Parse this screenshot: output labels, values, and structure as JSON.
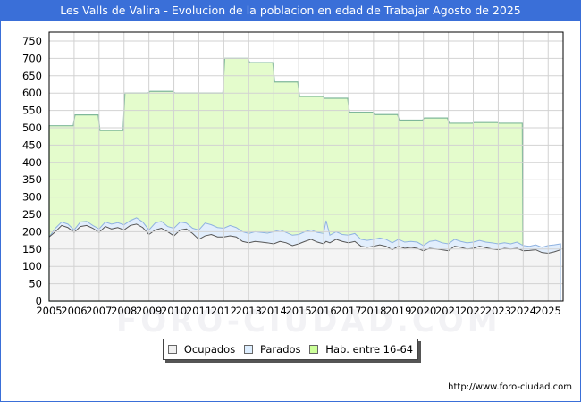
{
  "title": "Les Valls de Valira - Evolucion de la poblacion en edad de Trabajar Agosto de 2025",
  "credit": "http://www.foro-ciudad.com",
  "watermark": "FORO-CIUDAD.COM",
  "legend": [
    {
      "label": "Ocupados",
      "color": "#f0f0f0"
    },
    {
      "label": "Parados",
      "color": "#ddeeff"
    },
    {
      "label": "Hab. entre 16-64",
      "color": "#ccff99"
    }
  ],
  "chart_data": {
    "type": "area",
    "title": "Les Valls de Valira - Evolucion de la poblacion en edad de Trabajar Agosto de 2025",
    "xlabel": "",
    "ylabel": "",
    "ylim": [
      0,
      750
    ],
    "yticks": [
      0,
      50,
      100,
      150,
      200,
      250,
      300,
      350,
      400,
      450,
      500,
      550,
      600,
      650,
      700,
      750
    ],
    "xticks": [
      "2005",
      "2006",
      "2007",
      "2008",
      "2009",
      "2010",
      "2011",
      "2012",
      "2013",
      "2014",
      "2015",
      "2016",
      "2017",
      "2018",
      "2019",
      "2020",
      "2021",
      "2022",
      "2023",
      "2024",
      "2025"
    ],
    "grid": true,
    "legend_position": "bottom",
    "series": [
      {
        "name": "Hab. entre 16-64",
        "color": "#ccff99",
        "years": [
          2005,
          2006,
          2007,
          2008,
          2009,
          2010,
          2011,
          2012,
          2013,
          2014,
          2015,
          2016,
          2017,
          2018,
          2019,
          2020,
          2021,
          2022,
          2023
        ],
        "values": [
          506,
          537,
          492,
          600,
          605,
          600,
          600,
          700,
          688,
          632,
          590,
          585,
          545,
          538,
          522,
          528,
          513,
          515,
          513
        ]
      },
      {
        "name": "Parados (Ocupados + Parados total)",
        "color": "#ddeeff",
        "x": [
          2005.0,
          2005.25,
          2005.5,
          2005.75,
          2006.0,
          2006.25,
          2006.5,
          2006.75,
          2007.0,
          2007.25,
          2007.5,
          2007.75,
          2008.0,
          2008.25,
          2008.5,
          2008.75,
          2009.0,
          2009.25,
          2009.5,
          2009.75,
          2010.0,
          2010.25,
          2010.5,
          2010.75,
          2011.0,
          2011.25,
          2011.5,
          2011.75,
          2012.0,
          2012.25,
          2012.5,
          2012.75,
          2013.0,
          2013.25,
          2013.5,
          2013.75,
          2014.0,
          2014.25,
          2014.5,
          2014.75,
          2015.0,
          2015.25,
          2015.5,
          2015.75,
          2016.0,
          2016.1,
          2016.25,
          2016.5,
          2016.75,
          2017.0,
          2017.25,
          2017.5,
          2017.75,
          2018.0,
          2018.25,
          2018.5,
          2018.75,
          2019.0,
          2019.25,
          2019.5,
          2019.75,
          2020.0,
          2020.25,
          2020.5,
          2020.75,
          2021.0,
          2021.25,
          2021.5,
          2021.75,
          2022.0,
          2022.25,
          2022.5,
          2022.75,
          2023.0,
          2023.25,
          2023.5,
          2023.75,
          2024.0,
          2024.25,
          2024.5,
          2024.75,
          2025.0,
          2025.25,
          2025.5
        ],
        "values": [
          185,
          210,
          228,
          222,
          205,
          228,
          230,
          218,
          208,
          228,
          222,
          226,
          220,
          232,
          240,
          228,
          205,
          225,
          230,
          215,
          210,
          228,
          225,
          210,
          205,
          225,
          220,
          212,
          210,
          218,
          212,
          200,
          195,
          200,
          198,
          196,
          200,
          205,
          198,
          190,
          192,
          200,
          205,
          198,
          195,
          232,
          190,
          200,
          192,
          190,
          195,
          178,
          175,
          178,
          182,
          178,
          168,
          178,
          170,
          172,
          170,
          160,
          172,
          175,
          168,
          165,
          178,
          172,
          168,
          170,
          175,
          170,
          168,
          165,
          168,
          165,
          170,
          160,
          158,
          162,
          155,
          160,
          162,
          165
        ]
      },
      {
        "name": "Ocupados",
        "color": "#f0f0f0",
        "x": [
          2005.0,
          2005.25,
          2005.5,
          2005.75,
          2006.0,
          2006.25,
          2006.5,
          2006.75,
          2007.0,
          2007.25,
          2007.5,
          2007.75,
          2008.0,
          2008.25,
          2008.5,
          2008.75,
          2009.0,
          2009.25,
          2009.5,
          2009.75,
          2010.0,
          2010.25,
          2010.5,
          2010.75,
          2011.0,
          2011.25,
          2011.5,
          2011.75,
          2012.0,
          2012.25,
          2012.5,
          2012.75,
          2013.0,
          2013.25,
          2013.5,
          2013.75,
          2014.0,
          2014.25,
          2014.5,
          2014.75,
          2015.0,
          2015.25,
          2015.5,
          2015.75,
          2016.0,
          2016.1,
          2016.25,
          2016.5,
          2016.75,
          2017.0,
          2017.25,
          2017.5,
          2017.75,
          2018.0,
          2018.25,
          2018.5,
          2018.75,
          2019.0,
          2019.25,
          2019.5,
          2019.75,
          2020.0,
          2020.25,
          2020.5,
          2020.75,
          2021.0,
          2021.25,
          2021.5,
          2021.75,
          2022.0,
          2022.25,
          2022.5,
          2022.75,
          2023.0,
          2023.25,
          2023.5,
          2023.75,
          2024.0,
          2024.25,
          2024.5,
          2024.75,
          2025.0,
          2025.25,
          2025.5
        ],
        "values": [
          185,
          200,
          218,
          212,
          198,
          215,
          218,
          210,
          198,
          215,
          208,
          212,
          205,
          218,
          222,
          212,
          192,
          205,
          210,
          200,
          188,
          205,
          208,
          195,
          178,
          188,
          192,
          185,
          185,
          188,
          185,
          172,
          168,
          172,
          170,
          168,
          165,
          172,
          168,
          160,
          165,
          172,
          178,
          170,
          165,
          172,
          168,
          178,
          172,
          168,
          172,
          158,
          155,
          158,
          162,
          158,
          148,
          158,
          152,
          155,
          152,
          145,
          152,
          150,
          148,
          145,
          158,
          155,
          150,
          152,
          158,
          154,
          150,
          148,
          152,
          150,
          152,
          145,
          146,
          148,
          140,
          138,
          142,
          148
        ]
      }
    ]
  }
}
